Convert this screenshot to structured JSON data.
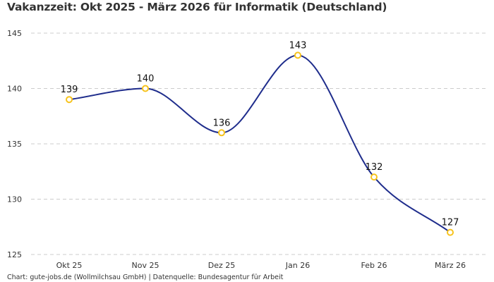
{
  "chart_data": {
    "type": "line",
    "title": "Vakanzzeit: Okt 2025 - März 2026 für Informatik (Deutschland)",
    "categories": [
      "Okt 25",
      "Nov 25",
      "Dez 25",
      "Jan 26",
      "Feb 26",
      "März 26"
    ],
    "values": [
      139,
      140,
      136,
      143,
      132,
      127
    ],
    "data_labels": [
      "139",
      "140",
      "136",
      "143",
      "132",
      "127"
    ],
    "ylim": [
      125,
      145
    ],
    "yticks": [
      "125",
      "130",
      "135",
      "140",
      "145"
    ],
    "xlabel": "",
    "ylabel": "",
    "grid": "horizontal dashed",
    "legend": "none",
    "colors": {
      "line": "#1f2d8c",
      "marker_stroke": "#f7c31c",
      "marker_fill": "#ffffff",
      "grid": "#cccccc"
    }
  },
  "footer": {
    "source": "Chart: gute-jobs.de (Wollmilchsau GmbH) | Datenquelle: Bundesagentur für Arbeit"
  }
}
